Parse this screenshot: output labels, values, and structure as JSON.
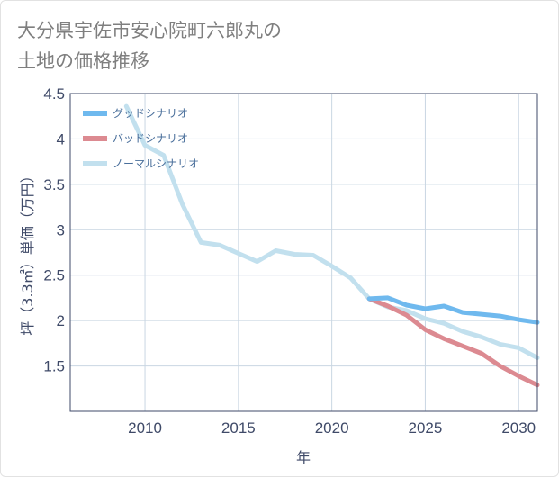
{
  "title": {
    "line1": "大分県宇佐市安心院町六郎丸の",
    "line2": "土地の価格推移"
  },
  "chart_data": {
    "type": "line",
    "xlabel": "年",
    "ylabel": "坪（3.3㎡）単価（万円）",
    "xlim": [
      2006,
      2031
    ],
    "ylim": [
      1.0,
      4.5
    ],
    "x_ticks": [
      2010,
      2015,
      2020,
      2025,
      2030
    ],
    "y_ticks": [
      1.5,
      2,
      2.5,
      3,
      3.5,
      4,
      4.5
    ],
    "grid": true,
    "legend_position": "top-left",
    "series": [
      {
        "name": "グッドシナリオ",
        "color": "#6fb9ee",
        "x": [
          2022,
          2023,
          2024,
          2025,
          2026,
          2027,
          2028,
          2029,
          2030,
          2031
        ],
        "y": [
          2.24,
          2.25,
          2.17,
          2.13,
          2.16,
          2.09,
          2.07,
          2.05,
          2.01,
          1.98
        ]
      },
      {
        "name": "バッドシナリオ",
        "color": "#dc8a91",
        "x": [
          2022,
          2023,
          2024,
          2025,
          2026,
          2027,
          2028,
          2029,
          2030,
          2031
        ],
        "y": [
          2.24,
          2.16,
          2.06,
          1.9,
          1.8,
          1.72,
          1.64,
          1.5,
          1.39,
          1.29
        ]
      },
      {
        "name": "ノーマルシナリオ",
        "color": "#c2e0ee",
        "x": [
          2009,
          2010,
          2011,
          2012,
          2013,
          2014,
          2015,
          2016,
          2017,
          2018,
          2019,
          2020,
          2021,
          2022,
          2023,
          2024,
          2025,
          2026,
          2027,
          2028,
          2029,
          2030,
          2031
        ],
        "y": [
          4.36,
          3.93,
          3.82,
          3.28,
          2.86,
          2.83,
          2.74,
          2.65,
          2.77,
          2.73,
          2.72,
          2.6,
          2.47,
          2.24,
          2.15,
          2.11,
          2.02,
          1.97,
          1.88,
          1.82,
          1.74,
          1.7,
          1.59
        ]
      }
    ]
  }
}
